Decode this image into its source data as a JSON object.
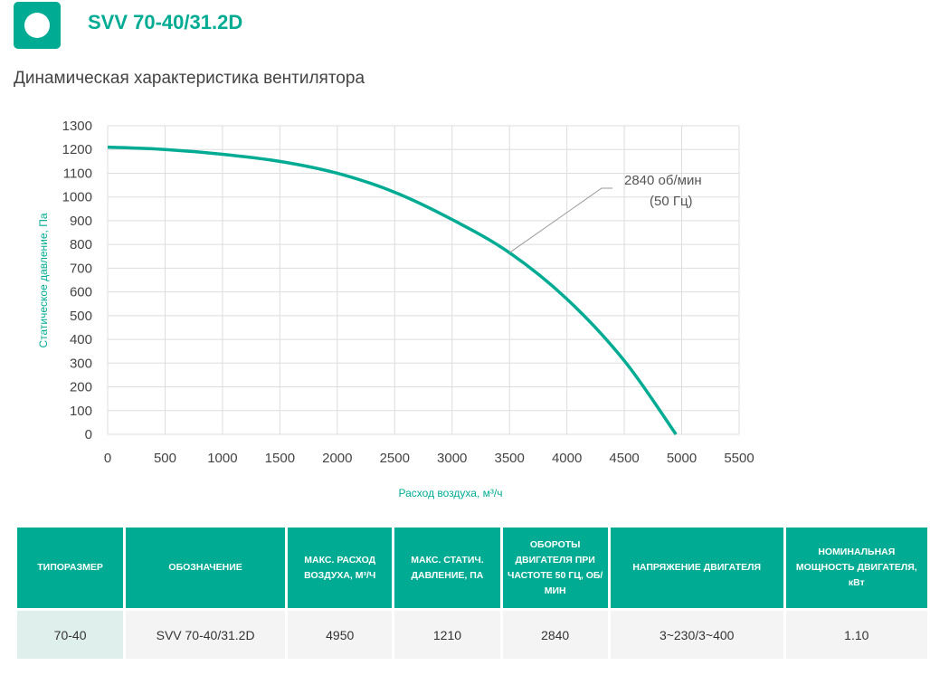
{
  "header": {
    "title": "SVV 70-40/31.2D",
    "subtitle": "Динамическая характеристика вентилятора"
  },
  "chart_data": {
    "type": "line",
    "xlabel": "Расход воздуха, м³/ч",
    "ylabel": "Статическое давление, Па",
    "xlim": [
      0,
      5500
    ],
    "ylim": [
      0,
      1300
    ],
    "xticks": [
      "0",
      "500",
      "1000",
      "1500",
      "2000",
      "2500",
      "3000",
      "3500",
      "4000",
      "4500",
      "5000",
      "5500"
    ],
    "yticks": [
      "0",
      "100",
      "200",
      "300",
      "400",
      "500",
      "600",
      "700",
      "800",
      "900",
      "1000",
      "1100",
      "1200",
      "1300"
    ],
    "grid": true,
    "color": "#00ab93",
    "series": [
      {
        "name": "2840 об/мин (50 Гц)",
        "x": [
          0,
          500,
          1000,
          1500,
          2000,
          2500,
          3000,
          3500,
          4000,
          4500,
          4950
        ],
        "y": [
          1210,
          1200,
          1180,
          1150,
          1100,
          1020,
          905,
          765,
          570,
          310,
          0
        ]
      }
    ],
    "annotation": {
      "line1": "2840 об/мин",
      "line2": "(50 Гц)",
      "x": 3500,
      "y": 765
    }
  },
  "table": {
    "headers": [
      "ТИПОРАЗМЕР",
      "ОБОЗНАЧЕНИЕ",
      "МАКС. РАСХОД ВОЗДУХА, М³/Ч",
      "МАКС. СТАТИЧ. ДАВЛЕНИЕ, ПА",
      "ОБОРОТЫ ДВИГАТЕЛЯ ПРИ ЧАСТОТЕ 50 ГЦ, ОБ/МИН",
      "НАПРЯЖЕНИЕ ДВИГАТЕЛЯ",
      "НОМИНАЛЬНАЯ МОЩНОСТЬ ДВИГАТЕЛЯ, кВт"
    ],
    "row": [
      "70-40",
      "SVV 70-40/31.2D",
      "4950",
      "1210",
      "2840",
      "3~230/3~400",
      "1.10"
    ]
  }
}
